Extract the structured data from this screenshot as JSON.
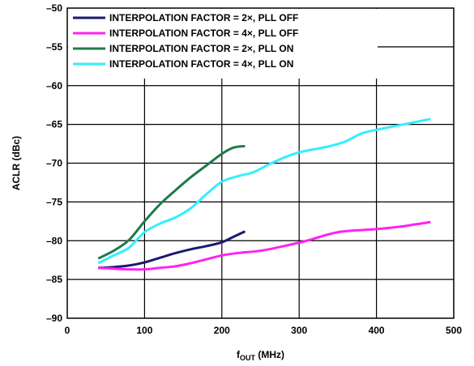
{
  "chart_data": {
    "type": "line",
    "title": "",
    "xlabel": {
      "main": "f",
      "sub": "OUT",
      "rest": " (MHz)"
    },
    "ylabel": "ACLR (dBc)",
    "xlim": [
      0,
      500
    ],
    "ylim": [
      -90,
      -50
    ],
    "xticks": [
      0,
      100,
      200,
      300,
      400,
      500
    ],
    "yticks": [
      -90,
      -85,
      -80,
      -75,
      -70,
      -65,
      -60,
      -55,
      -50
    ],
    "xtick_labels": [
      "0",
      "100",
      "200",
      "300",
      "400",
      "500"
    ],
    "ytick_labels": [
      "–90",
      "–85",
      "–80",
      "–75",
      "–70",
      "–65",
      "–60",
      "–55",
      "–50"
    ],
    "grid": true,
    "legend_position": "top-left",
    "series": [
      {
        "name": "INTERPOLATION FACTOR = 2×, PLL OFF",
        "color": "#1a1a6e",
        "points": [
          [
            40,
            -83.5
          ],
          [
            60,
            -83.4
          ],
          [
            80,
            -83.2
          ],
          [
            100,
            -82.8
          ],
          [
            120,
            -82.2
          ],
          [
            140,
            -81.6
          ],
          [
            160,
            -81.1
          ],
          [
            180,
            -80.7
          ],
          [
            200,
            -80.2
          ],
          [
            215,
            -79.5
          ],
          [
            230,
            -78.8
          ]
        ]
      },
      {
        "name": "INTERPOLATION FACTOR = 4×, PLL OFF",
        "color": "#ff22ee",
        "points": [
          [
            40,
            -83.5
          ],
          [
            60,
            -83.6
          ],
          [
            80,
            -83.7
          ],
          [
            100,
            -83.7
          ],
          [
            120,
            -83.5
          ],
          [
            140,
            -83.3
          ],
          [
            160,
            -82.9
          ],
          [
            180,
            -82.4
          ],
          [
            200,
            -81.9
          ],
          [
            220,
            -81.6
          ],
          [
            250,
            -81.3
          ],
          [
            280,
            -80.7
          ],
          [
            310,
            -80.0
          ],
          [
            330,
            -79.4
          ],
          [
            350,
            -78.9
          ],
          [
            370,
            -78.7
          ],
          [
            400,
            -78.5
          ],
          [
            430,
            -78.2
          ],
          [
            450,
            -77.9
          ],
          [
            470,
            -77.6
          ]
        ]
      },
      {
        "name": "INTERPOLATION FACTOR = 2×, PLL ON",
        "color": "#1f7a4a",
        "points": [
          [
            40,
            -82.3
          ],
          [
            60,
            -81.3
          ],
          [
            80,
            -79.9
          ],
          [
            100,
            -77.5
          ],
          [
            120,
            -75.3
          ],
          [
            140,
            -73.5
          ],
          [
            160,
            -71.8
          ],
          [
            180,
            -70.3
          ],
          [
            200,
            -68.8
          ],
          [
            215,
            -68.0
          ],
          [
            230,
            -67.8
          ]
        ]
      },
      {
        "name": "INTERPOLATION FACTOR = 4×, PLL ON",
        "color": "#33eeff",
        "points": [
          [
            40,
            -82.9
          ],
          [
            60,
            -81.9
          ],
          [
            80,
            -80.9
          ],
          [
            100,
            -78.9
          ],
          [
            120,
            -77.8
          ],
          [
            140,
            -77.0
          ],
          [
            160,
            -75.8
          ],
          [
            180,
            -74.0
          ],
          [
            200,
            -72.4
          ],
          [
            220,
            -71.7
          ],
          [
            240,
            -71.2
          ],
          [
            260,
            -70.2
          ],
          [
            280,
            -69.3
          ],
          [
            300,
            -68.6
          ],
          [
            320,
            -68.2
          ],
          [
            340,
            -67.8
          ],
          [
            360,
            -67.2
          ],
          [
            380,
            -66.2
          ],
          [
            400,
            -65.7
          ],
          [
            420,
            -65.3
          ],
          [
            440,
            -64.9
          ],
          [
            460,
            -64.5
          ],
          [
            470,
            -64.3
          ]
        ]
      }
    ]
  }
}
